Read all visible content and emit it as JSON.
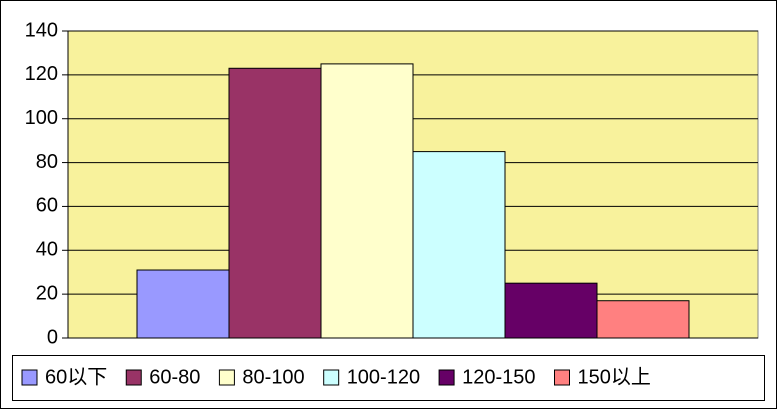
{
  "chart_data": {
    "type": "bar",
    "categories": [
      null
    ],
    "series": [
      {
        "name": "60以下",
        "color": "#9999ff",
        "values": [
          31
        ]
      },
      {
        "name": "60-80",
        "color": "#993366",
        "values": [
          123
        ]
      },
      {
        "name": "80-100",
        "color": "#ffffcc",
        "values": [
          125
        ]
      },
      {
        "name": "100-120",
        "color": "#ccffff",
        "values": [
          85
        ]
      },
      {
        "name": "120-150",
        "color": "#660066",
        "values": [
          25
        ]
      },
      {
        "name": "150以上",
        "color": "#ff8080",
        "values": [
          17
        ]
      }
    ],
    "ylim": [
      0,
      140
    ],
    "yticks": [
      0,
      20,
      40,
      60,
      80,
      100,
      120,
      140
    ],
    "grid": true
  }
}
